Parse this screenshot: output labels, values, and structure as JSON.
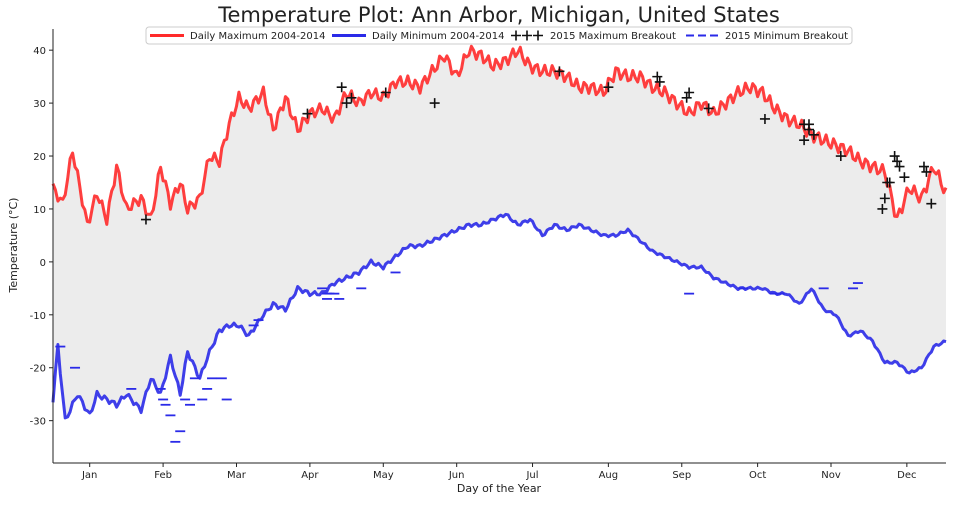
{
  "chart_data": {
    "type": "line",
    "title": "Temperature Plot: Ann Arbor, Michigan, United States",
    "xlabel": "Day of the Year",
    "ylabel": "Temperature (°C)",
    "xlim": [
      0,
      365
    ],
    "ylim": [
      -38,
      44
    ],
    "yticks": [
      -30,
      -20,
      -10,
      0,
      10,
      20,
      30,
      40
    ],
    "months": [
      "Jan",
      "Feb",
      "Mar",
      "Apr",
      "May",
      "Jun",
      "Jul",
      "Aug",
      "Sep",
      "Oct",
      "Nov",
      "Dec"
    ],
    "month_centers": [
      15,
      45,
      75,
      105,
      135,
      165,
      196,
      227,
      257,
      288,
      318,
      349
    ],
    "grid": false,
    "legend_position": "top-center",
    "fill_between": true,
    "colors": {
      "max": "#ff2a2a",
      "min": "#2a2ae8",
      "fill": "#ececec",
      "breakout": "#111111"
    },
    "series": [
      {
        "name": "Daily Maximum 2004-2014",
        "style": "solid",
        "x": [
          0,
          4,
          8,
          14,
          18,
          22,
          26,
          30,
          36,
          40,
          44,
          48,
          52,
          55,
          60,
          64,
          68,
          72,
          76,
          80,
          86,
          90,
          95,
          100,
          105,
          110,
          115,
          120,
          125,
          130,
          135,
          140,
          145,
          150,
          155,
          160,
          165,
          170,
          175,
          180,
          185,
          190,
          195,
          200,
          205,
          210,
          215,
          220,
          225,
          230,
          235,
          240,
          245,
          250,
          255,
          260,
          265,
          270,
          275,
          280,
          285,
          290,
          295,
          300,
          305,
          310,
          315,
          320,
          325,
          330,
          335,
          340,
          345,
          350,
          355,
          360,
          365
        ],
        "values": [
          14,
          11,
          21,
          7,
          13,
          8,
          18,
          10,
          12,
          8,
          18,
          11,
          15,
          10,
          12,
          20,
          19,
          26,
          31,
          29,
          32,
          25,
          31,
          25,
          28,
          29,
          27,
          32,
          30,
          32,
          31,
          34,
          34,
          33,
          36,
          39,
          35,
          40,
          39,
          37,
          38,
          40,
          37,
          36,
          36,
          35,
          33,
          33,
          32,
          36,
          35,
          35,
          33,
          32,
          30,
          28,
          30,
          28,
          30,
          32,
          33,
          32,
          29,
          27,
          26,
          24,
          23,
          22,
          21,
          19,
          18,
          17,
          8,
          14,
          12,
          18,
          13
        ]
      },
      {
        "name": "Daily Minimum 2004-2014",
        "style": "solid",
        "x": [
          0,
          2,
          5,
          10,
          15,
          18,
          22,
          26,
          30,
          36,
          40,
          44,
          48,
          52,
          55,
          60,
          64,
          68,
          72,
          76,
          80,
          86,
          90,
          95,
          100,
          105,
          110,
          115,
          120,
          125,
          130,
          135,
          140,
          145,
          150,
          155,
          160,
          165,
          170,
          175,
          180,
          185,
          190,
          195,
          200,
          205,
          210,
          215,
          220,
          225,
          230,
          235,
          240,
          245,
          250,
          255,
          260,
          265,
          270,
          275,
          280,
          285,
          290,
          295,
          300,
          305,
          310,
          315,
          320,
          325,
          330,
          335,
          340,
          345,
          350,
          355,
          360,
          365
        ],
        "values": [
          -26,
          -16,
          -30,
          -25,
          -29,
          -25,
          -26,
          -27,
          -25,
          -28,
          -22,
          -25,
          -18,
          -25,
          -17,
          -22,
          -17,
          -13,
          -12,
          -12,
          -14,
          -10,
          -8,
          -9,
          -5,
          -6,
          -6,
          -4,
          -3,
          -2,
          0,
          -1,
          1,
          3,
          3,
          4,
          5,
          6,
          7,
          7,
          8,
          9,
          7,
          8,
          5,
          7,
          6,
          7,
          6,
          5,
          5,
          6,
          4,
          2,
          1,
          0,
          -1,
          -1,
          -3,
          -4,
          -5,
          -5,
          -5,
          -6,
          -6,
          -8,
          -5,
          -9,
          -10,
          -14,
          -13,
          -15,
          -19,
          -19,
          -21,
          -20,
          -16,
          -15
        ]
      },
      {
        "name": "2015 Maximum Breakout",
        "style": "plus-markers",
        "x": [
          38,
          104,
          118,
          120,
          122,
          136,
          156,
          207,
          227,
          247,
          248,
          259,
          260,
          268,
          291,
          307,
          307,
          309,
          309,
          311,
          322,
          339,
          340,
          341,
          342,
          344,
          345,
          346,
          348,
          356,
          357,
          359
        ],
        "values": [
          8,
          28,
          33,
          30,
          31,
          32,
          30,
          36,
          33,
          35,
          34,
          31,
          32,
          29,
          27,
          26,
          23,
          26,
          25,
          24,
          20,
          10,
          12,
          15,
          15,
          20,
          19,
          18,
          16,
          18,
          17,
          11
        ]
      },
      {
        "name": "2015 Minimum Breakout",
        "style": "dash-markers",
        "x": [
          3,
          9,
          32,
          44,
          45,
          46,
          48,
          50,
          52,
          54,
          56,
          58,
          61,
          63,
          65,
          69,
          71,
          82,
          84,
          110,
          112,
          112,
          113,
          115,
          117,
          126,
          140,
          260,
          282,
          295,
          297,
          315,
          327,
          329
        ],
        "values": [
          -16,
          -20,
          -24,
          -24,
          -26,
          -27,
          -29,
          -34,
          -32,
          -26,
          -27,
          -22,
          -26,
          -24,
          -22,
          -22,
          -26,
          -12,
          -11,
          -5,
          -6,
          -7,
          -6,
          -6,
          -7,
          -5,
          -2,
          -6,
          -5,
          -6,
          -6,
          -5,
          -5,
          -4
        ]
      }
    ]
  }
}
